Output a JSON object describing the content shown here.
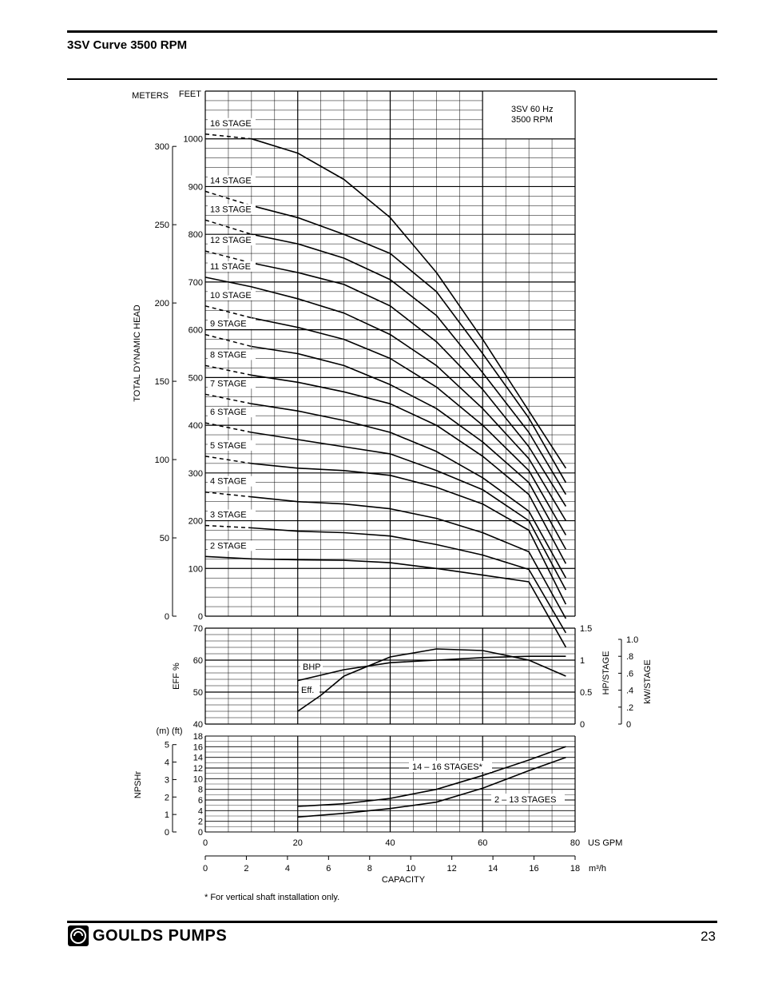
{
  "page": {
    "title": "3SV Curve 3500 RPM",
    "page_number": "23",
    "brand": "GOULDS PUMPS",
    "footnote": "* For vertical shaft installation only."
  },
  "chart_data": [
    {
      "type": "line",
      "title": "",
      "legend_box": [
        "3SV  60 Hz",
        "3500 RPM"
      ],
      "x_axis": {
        "label": "US GPM",
        "range": [
          0,
          80
        ],
        "ticks": [
          0,
          20,
          40,
          60,
          80
        ]
      },
      "x2_axis": {
        "label": "m³/h",
        "range": [
          0,
          18
        ],
        "ticks": [
          0,
          2,
          4,
          6,
          8,
          10,
          12,
          14,
          16,
          18
        ],
        "caption": "CAPACITY"
      },
      "y_axis": {
        "label": "FEET",
        "range": [
          0,
          1100
        ],
        "ticks": [
          0,
          100,
          200,
          300,
          400,
          500,
          600,
          700,
          800,
          900,
          1000
        ]
      },
      "y2_axis": {
        "label": "METERS",
        "title": "TOTAL DYNAMIC HEAD",
        "range": [
          0,
          335.3
        ],
        "ticks": [
          0,
          50,
          100,
          150,
          200,
          250,
          300
        ]
      },
      "grid": true,
      "series": [
        {
          "name": "16 STAGE",
          "dashed_until": 10,
          "points": [
            [
              0,
              1010
            ],
            [
              10,
              1000
            ],
            [
              20,
              970
            ],
            [
              30,
              915
            ],
            [
              40,
              835
            ],
            [
              50,
              720
            ],
            [
              60,
              580
            ],
            [
              70,
              430
            ],
            [
              78,
              310
            ]
          ]
        },
        {
          "name": "14 STAGE",
          "dashed_until": 10,
          "points": [
            [
              0,
              890
            ],
            [
              10,
              860
            ],
            [
              20,
              835
            ],
            [
              30,
              800
            ],
            [
              40,
              760
            ],
            [
              50,
              680
            ],
            [
              60,
              550
            ],
            [
              70,
              415
            ],
            [
              78,
              280
            ]
          ]
        },
        {
          "name": "13 STAGE",
          "dashed_until": 10,
          "points": [
            [
              0,
              830
            ],
            [
              10,
              800
            ],
            [
              20,
              780
            ],
            [
              30,
              750
            ],
            [
              40,
              705
            ],
            [
              50,
              630
            ],
            [
              60,
              510
            ],
            [
              70,
              385
            ],
            [
              78,
              255
            ]
          ]
        },
        {
          "name": "12 STAGE",
          "dashed_until": 10,
          "points": [
            [
              0,
              765
            ],
            [
              10,
              740
            ],
            [
              20,
              720
            ],
            [
              30,
              695
            ],
            [
              40,
              650
            ],
            [
              50,
              575
            ],
            [
              60,
              475
            ],
            [
              70,
              355
            ],
            [
              78,
              230
            ]
          ]
        },
        {
          "name": "11 STAGE",
          "dashed_until": 0,
          "points": [
            [
              0,
              710
            ],
            [
              10,
              690
            ],
            [
              20,
              665
            ],
            [
              30,
              635
            ],
            [
              40,
              590
            ],
            [
              50,
              525
            ],
            [
              60,
              435
            ],
            [
              70,
              330
            ],
            [
              78,
              200
            ]
          ]
        },
        {
          "name": "10 STAGE",
          "dashed_until": 10,
          "points": [
            [
              0,
              650
            ],
            [
              10,
              625
            ],
            [
              20,
              605
            ],
            [
              30,
              580
            ],
            [
              40,
              540
            ],
            [
              50,
              480
            ],
            [
              60,
              400
            ],
            [
              70,
              305
            ],
            [
              78,
              170
            ]
          ]
        },
        {
          "name": "9 STAGE",
          "dashed_until": 10,
          "points": [
            [
              0,
              590
            ],
            [
              10,
              565
            ],
            [
              20,
              550
            ],
            [
              30,
              525
            ],
            [
              40,
              485
            ],
            [
              50,
              435
            ],
            [
              60,
              365
            ],
            [
              70,
              280
            ],
            [
              78,
              140
            ]
          ]
        },
        {
          "name": "8 STAGE",
          "dashed_until": 10,
          "points": [
            [
              0,
              525
            ],
            [
              10,
              505
            ],
            [
              20,
              490
            ],
            [
              30,
              470
            ],
            [
              40,
              445
            ],
            [
              50,
              400
            ],
            [
              60,
              335
            ],
            [
              70,
              255
            ],
            [
              78,
              110
            ]
          ]
        },
        {
          "name": "7 STAGE",
          "dashed_until": 10,
          "points": [
            [
              0,
              465
            ],
            [
              10,
              445
            ],
            [
              20,
              430
            ],
            [
              30,
              410
            ],
            [
              40,
              385
            ],
            [
              50,
              345
            ],
            [
              60,
              290
            ],
            [
              70,
              220
            ],
            [
              78,
              80
            ]
          ]
        },
        {
          "name": "6 STAGE",
          "dashed_until": 10,
          "points": [
            [
              0,
              405
            ],
            [
              10,
              385
            ],
            [
              20,
              370
            ],
            [
              30,
              355
            ],
            [
              40,
              340
            ],
            [
              50,
              305
            ],
            [
              60,
              265
            ],
            [
              70,
              200
            ],
            [
              78,
              55
            ]
          ]
        },
        {
          "name": "5 STAGE",
          "dashed_until": 10,
          "points": [
            [
              0,
              335
            ],
            [
              10,
              320
            ],
            [
              20,
              310
            ],
            [
              30,
              305
            ],
            [
              40,
              295
            ],
            [
              50,
              270
            ],
            [
              60,
              235
            ],
            [
              70,
              180
            ],
            [
              78,
              25
            ]
          ]
        },
        {
          "name": "4 STAGE",
          "dashed_until": 10,
          "points": [
            [
              0,
              260
            ],
            [
              10,
              250
            ],
            [
              20,
              240
            ],
            [
              30,
              235
            ],
            [
              40,
              225
            ],
            [
              50,
              205
            ],
            [
              60,
              175
            ],
            [
              70,
              135
            ],
            [
              78,
              -5
            ]
          ]
        },
        {
          "name": "3 STAGE",
          "dashed_until": 10,
          "points": [
            [
              0,
              190
            ],
            [
              10,
              185
            ],
            [
              20,
              178
            ],
            [
              30,
              175
            ],
            [
              40,
              168
            ],
            [
              50,
              150
            ],
            [
              60,
              128
            ],
            [
              70,
              98
            ],
            [
              78,
              -35
            ]
          ]
        },
        {
          "name": "2 STAGE",
          "dashed_until": 0,
          "points": [
            [
              0,
              125
            ],
            [
              10,
              120
            ],
            [
              20,
              118
            ],
            [
              30,
              117
            ],
            [
              40,
              112
            ],
            [
              50,
              100
            ],
            [
              60,
              86
            ],
            [
              70,
              72
            ],
            [
              78,
              -65
            ]
          ]
        }
      ]
    },
    {
      "type": "line",
      "x_axis": {
        "label": "US GPM",
        "range": [
          0,
          80
        ]
      },
      "y_axis": {
        "label": "EFF %",
        "range": [
          40,
          70
        ],
        "ticks": [
          40,
          50,
          60,
          70
        ]
      },
      "y2_axis": {
        "label": "HP/STAGE",
        "range": [
          0,
          1.5
        ],
        "ticks": [
          0,
          0.5,
          1,
          1.5
        ]
      },
      "y3_axis": {
        "label": "kW/STAGE",
        "ticks": [
          "0",
          ".2",
          ".4",
          ".6",
          ".8",
          "1.0"
        ]
      },
      "series": [
        {
          "name": "BHP",
          "axis": "hp",
          "points": [
            [
              20,
              0.68
            ],
            [
              30,
              0.85
            ],
            [
              40,
              0.96
            ],
            [
              50,
              1.0
            ],
            [
              60,
              1.04
            ],
            [
              70,
              1.06
            ],
            [
              78,
              1.06
            ]
          ]
        },
        {
          "name": "Eff.",
          "axis": "eff",
          "points": [
            [
              20,
              44
            ],
            [
              25,
              49
            ],
            [
              30,
              55
            ],
            [
              40,
              61
            ],
            [
              50,
              63.5
            ],
            [
              60,
              63
            ],
            [
              70,
              60
            ],
            [
              78,
              55
            ]
          ]
        }
      ]
    },
    {
      "type": "line",
      "x_axis": {
        "label": "US GPM",
        "range": [
          0,
          80
        ]
      },
      "y_axis": {
        "label": "(ft)",
        "range": [
          0,
          18
        ],
        "ticks": [
          0,
          2,
          4,
          6,
          8,
          10,
          12,
          14,
          16,
          18
        ]
      },
      "y2_axis": {
        "label": "(m)",
        "title": "NPSHr",
        "range": [
          0,
          5.49
        ],
        "ticks": [
          0,
          1,
          2,
          3,
          4,
          5
        ]
      },
      "series": [
        {
          "name": "14 – 16 STAGES*",
          "points": [
            [
              20,
              4.8
            ],
            [
              30,
              5.3
            ],
            [
              40,
              6.3
            ],
            [
              50,
              8
            ],
            [
              60,
              10.6
            ],
            [
              70,
              13.5
            ],
            [
              78,
              16
            ]
          ]
        },
        {
          "name": "2 – 13 STAGES",
          "points": [
            [
              20,
              2.8
            ],
            [
              30,
              3.5
            ],
            [
              40,
              4.4
            ],
            [
              50,
              5.6
            ],
            [
              60,
              8.2
            ],
            [
              70,
              11.5
            ],
            [
              78,
              14
            ]
          ]
        }
      ]
    }
  ]
}
